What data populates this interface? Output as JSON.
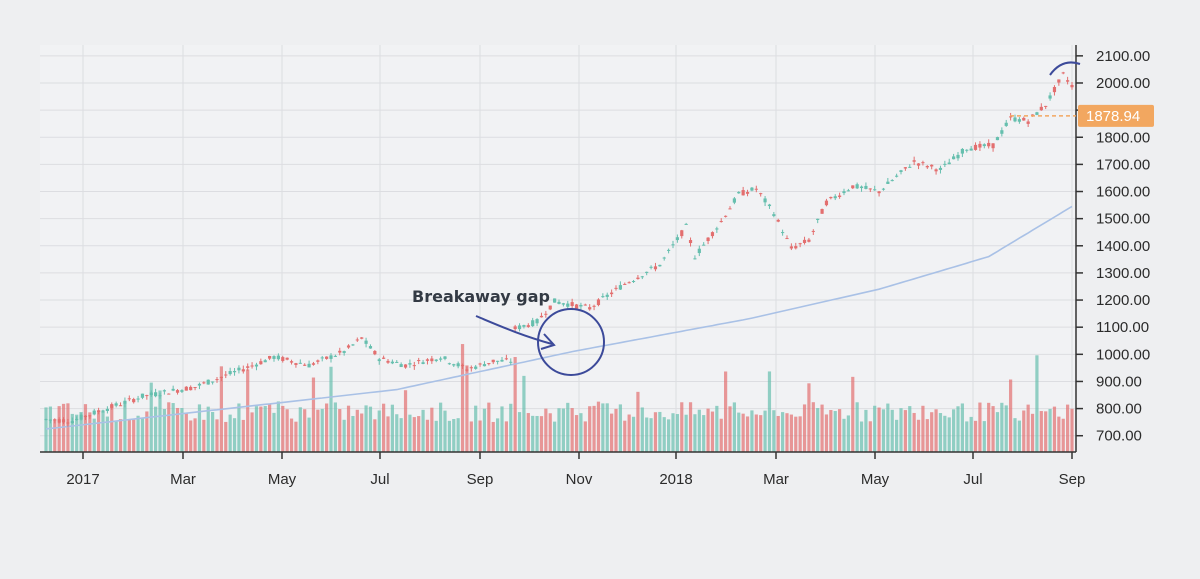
{
  "chart_data": {
    "type": "candlestick",
    "y_axis": {
      "ticks": [
        "2100.00",
        "2000.00",
        "1900.00",
        "1800.00",
        "1700.00",
        "1600.00",
        "1500.00",
        "1400.00",
        "1300.00",
        "1200.00",
        "1100.00",
        "1000.00",
        "900.00",
        "800.00",
        "700.00"
      ],
      "ylim": [
        640,
        2140
      ],
      "side": "right"
    },
    "x_axis": {
      "labels": [
        "2017",
        "Mar",
        "May",
        "Jul",
        "Sep",
        "Nov",
        "2018",
        "Mar",
        "May",
        "Jul",
        "Sep"
      ]
    },
    "grid": true,
    "current_price": {
      "value": 1878.94,
      "label": "1878.94"
    },
    "annotation": {
      "text": "Breakaway gap",
      "gap_from": 980,
      "gap_to": 1090
    },
    "price_path": [
      [
        0,
        760
      ],
      [
        6,
        755
      ],
      [
        12,
        790
      ],
      [
        22,
        845
      ],
      [
        34,
        880
      ],
      [
        44,
        940
      ],
      [
        52,
        990
      ],
      [
        60,
        960
      ],
      [
        68,
        1010
      ],
      [
        72,
        1060
      ],
      [
        76,
        985
      ],
      [
        82,
        960
      ],
      [
        90,
        990
      ],
      [
        96,
        945
      ],
      [
        102,
        975
      ],
      [
        106,
        975
      ],
      [
        107,
        1095
      ],
      [
        112,
        1120
      ],
      [
        116,
        1195
      ],
      [
        124,
        1170
      ],
      [
        132,
        1260
      ],
      [
        140,
        1330
      ],
      [
        146,
        1470
      ],
      [
        148,
        1360
      ],
      [
        154,
        1490
      ],
      [
        158,
        1590
      ],
      [
        162,
        1610
      ],
      [
        166,
        1520
      ],
      [
        170,
        1390
      ],
      [
        174,
        1420
      ],
      [
        178,
        1560
      ],
      [
        184,
        1620
      ],
      [
        190,
        1600
      ],
      [
        198,
        1710
      ],
      [
        204,
        1680
      ],
      [
        210,
        1760
      ],
      [
        216,
        1770
      ],
      [
        220,
        1870
      ],
      [
        224,
        1860
      ],
      [
        228,
        1920
      ],
      [
        232,
        2030
      ],
      [
        234,
        1990
      ]
    ],
    "moving_average": [
      [
        0,
        725
      ],
      [
        80,
        870
      ],
      [
        120,
        1010
      ],
      [
        160,
        1130
      ],
      [
        190,
        1240
      ],
      [
        215,
        1360
      ],
      [
        234,
        1545
      ]
    ],
    "colors": {
      "up": "#66bfae",
      "down": "#e36f6f",
      "ma": "#a9c1e6",
      "price_tag": "#f2a760",
      "annotation": "#3c4a9a"
    }
  }
}
